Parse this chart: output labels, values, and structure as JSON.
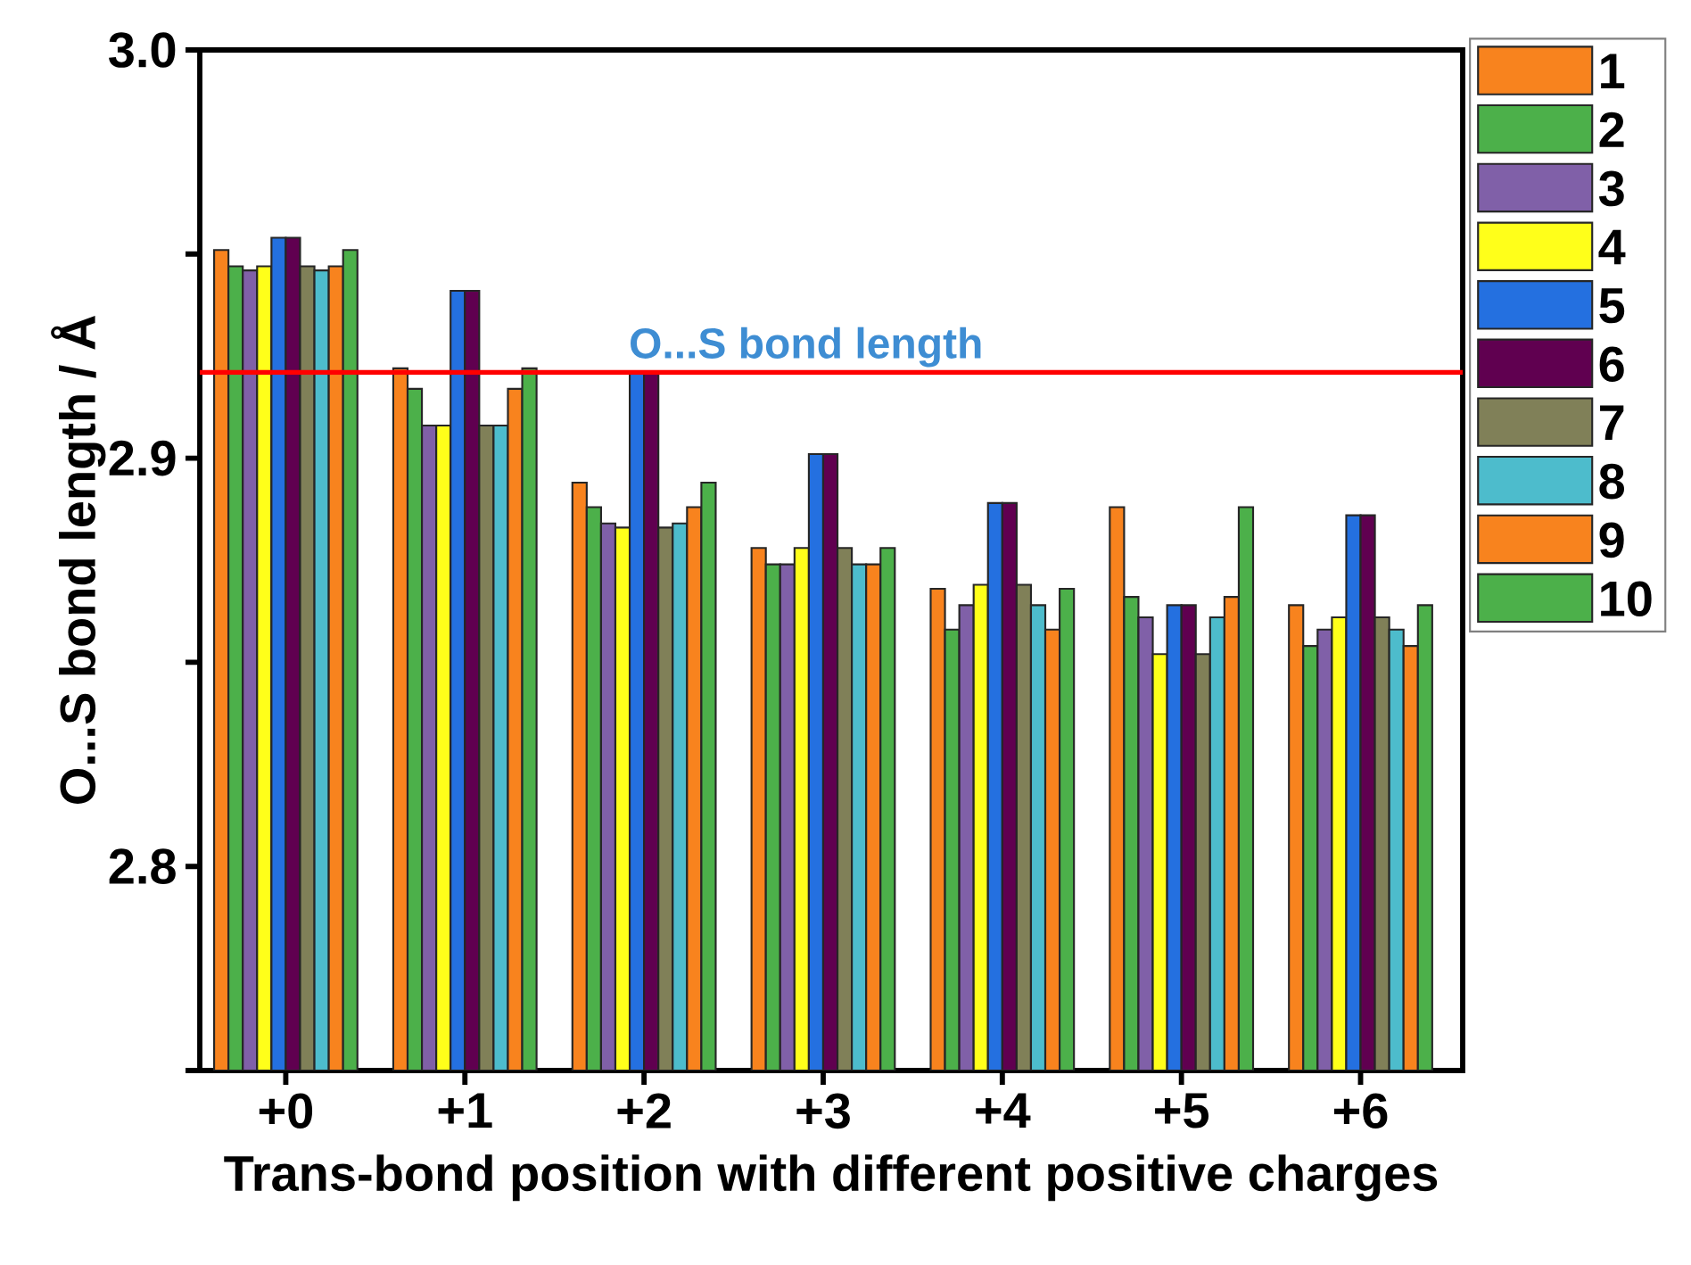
{
  "chart_data": {
    "type": "bar",
    "xlabel": "Trans-bond position with different positive charges",
    "ylabel": "O...S bond length / Å",
    "categories": [
      "+0",
      "+1",
      "+2",
      "+3",
      "+4",
      "+5",
      "+6"
    ],
    "ylim": [
      2.75,
      3.0
    ],
    "yticks": [
      {
        "value": 2.75,
        "label": null
      },
      2.8,
      {
        "value": 2.85,
        "label": null
      },
      2.9,
      {
        "value": 2.95,
        "label": null
      },
      {
        "value": 3.0,
        "label": "3.0"
      }
    ],
    "legend": "right",
    "ref_lines": [
      {
        "axis": "y",
        "value": 2.921,
        "label": "O...S bond length",
        "color": "#ff0000"
      }
    ],
    "series": [
      {
        "name": "1",
        "color": "#f8831e",
        "values": [
          2.951,
          2.922,
          2.894,
          2.878,
          2.868,
          2.888,
          2.864
        ]
      },
      {
        "name": "2",
        "color": "#4cb04a",
        "values": [
          2.947,
          2.917,
          2.888,
          2.874,
          2.858,
          2.866,
          2.854
        ]
      },
      {
        "name": "3",
        "color": "#8060a8",
        "values": [
          2.946,
          2.908,
          2.884,
          2.874,
          2.864,
          2.861,
          2.858
        ]
      },
      {
        "name": "4",
        "color": "#ffff1a",
        "values": [
          2.947,
          2.908,
          2.883,
          2.878,
          2.869,
          2.852,
          2.861
        ]
      },
      {
        "name": "5",
        "color": "#2470e0",
        "values": [
          2.954,
          2.941,
          2.921,
          2.901,
          2.889,
          2.864,
          2.886
        ]
      },
      {
        "name": "6",
        "color": "#600050",
        "values": [
          2.954,
          2.941,
          2.921,
          2.901,
          2.889,
          2.864,
          2.886
        ]
      },
      {
        "name": "7",
        "color": "#808058",
        "values": [
          2.947,
          2.908,
          2.883,
          2.878,
          2.869,
          2.852,
          2.861
        ]
      },
      {
        "name": "8",
        "color": "#4dbccc",
        "values": [
          2.946,
          2.908,
          2.884,
          2.874,
          2.864,
          2.861,
          2.858
        ]
      },
      {
        "name": "9",
        "color": "#f8831e",
        "values": [
          2.947,
          2.917,
          2.888,
          2.874,
          2.858,
          2.866,
          2.854
        ]
      },
      {
        "name": "10",
        "color": "#4cb04a",
        "values": [
          2.951,
          2.922,
          2.894,
          2.878,
          2.868,
          2.888,
          2.864
        ]
      }
    ]
  }
}
